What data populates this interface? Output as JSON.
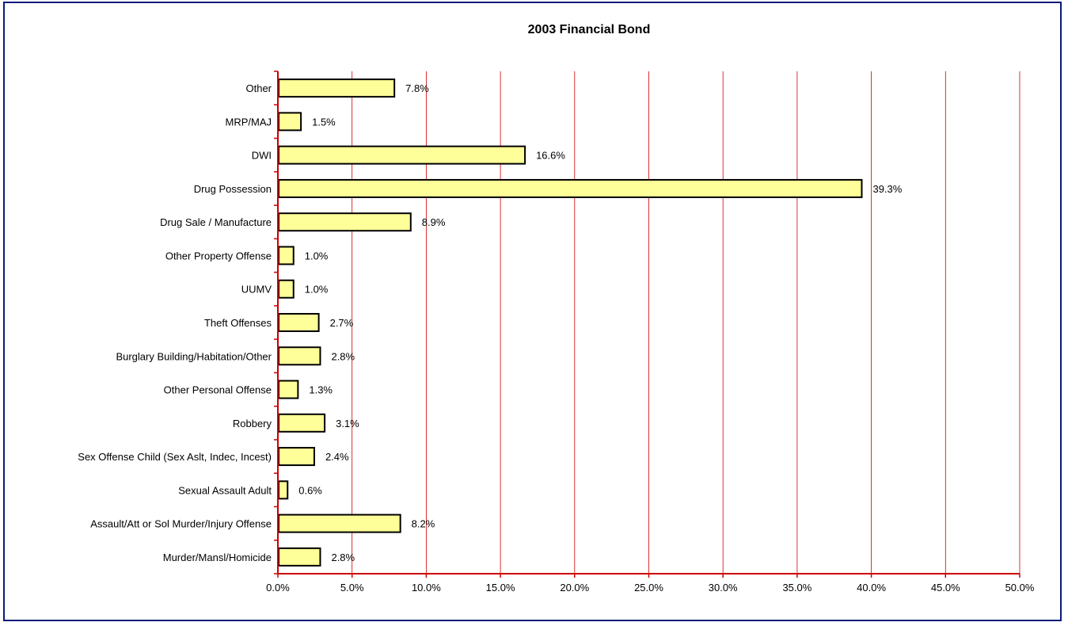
{
  "chart_data": {
    "type": "bar",
    "orientation": "horizontal",
    "title": "2003 Financial Bond",
    "xlabel": "",
    "ylabel": "",
    "xlim": [
      0,
      50
    ],
    "x_ticks": [
      "0.0%",
      "5.0%",
      "10.0%",
      "15.0%",
      "20.0%",
      "25.0%",
      "30.0%",
      "35.0%",
      "40.0%",
      "45.0%",
      "50.0%"
    ],
    "grid": "vertical",
    "legend": "none",
    "categories": [
      "Other",
      "MRP/MAJ",
      "DWI",
      "Drug Possession",
      "Drug Sale / Manufacture",
      "Other Property Offense",
      "UUMV",
      "Theft Offenses",
      "Burglary Building/Habitation/Other",
      "Other Personal Offense",
      "Robbery",
      "Sex Offense Child (Sex Aslt, Indec, Incest)",
      "Sexual Assault Adult",
      "Assault/Att or Sol Murder/Injury Offense",
      "Murder/Mansl/Homicide"
    ],
    "values": [
      7.8,
      1.5,
      16.6,
      39.3,
      8.9,
      1.0,
      1.0,
      2.7,
      2.8,
      1.3,
      3.1,
      2.4,
      0.6,
      8.2,
      2.8
    ],
    "data_labels": [
      "7.8%",
      "1.5%",
      "16.6%",
      "39.3%",
      "8.9%",
      "1.0%",
      "1.0%",
      "2.7%",
      "2.8%",
      "1.3%",
      "3.1%",
      "2.4%",
      "0.6%",
      "8.2%",
      "2.8%"
    ],
    "colors": {
      "bar_fill": "#ffff99",
      "bar_stroke": "#000000",
      "grid": "#cc0000",
      "axis": "#cc0000",
      "frame": "#0a1a7a"
    }
  }
}
